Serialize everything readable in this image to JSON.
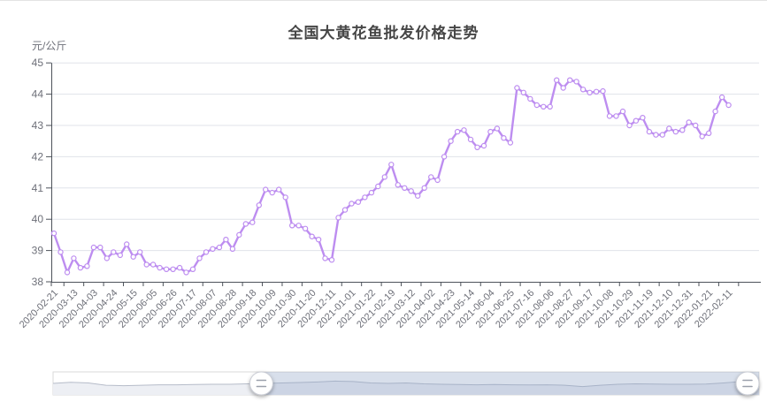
{
  "header": {
    "title": "全国大黄花鱼批发价格走势"
  },
  "chart_data": {
    "type": "line",
    "title": "全国大黄花鱼批发价格走势",
    "ylabel_unit": "元/公斤",
    "ylim": [
      38,
      45
    ],
    "y_ticks": [
      38,
      39,
      40,
      41,
      42,
      43,
      44,
      45
    ],
    "grid": true,
    "x_label_interval": 3,
    "x_tick_labels": [
      "2020-02-21",
      "2020-03-13",
      "2020-04-03",
      "2020-04-24",
      "2020-05-15",
      "2020-06-05",
      "2020-06-26",
      "2020-07-17",
      "2020-08-07",
      "2020-08-28",
      "2020-09-18",
      "2020-10-09",
      "2020-10-30",
      "2020-11-20",
      "2020-12-11",
      "2021-01-01",
      "2021-01-22",
      "2021-02-19",
      "2021-03-12",
      "2021-04-02",
      "2021-04-23",
      "2021-05-14",
      "2021-06-04",
      "2021-06-25",
      "2021-07-16",
      "2021-08-06",
      "2021-08-27",
      "2021-09-17",
      "2021-10-08",
      "2021-10-29",
      "2021-11-19",
      "2021-12-10",
      "2021-12-31",
      "2022-01-21",
      "2022-02-11"
    ],
    "x": [
      "2020-02-21",
      "2020-02-28",
      "2020-03-06",
      "2020-03-13",
      "2020-03-20",
      "2020-03-27",
      "2020-04-03",
      "2020-04-10",
      "2020-04-17",
      "2020-04-24",
      "2020-05-01",
      "2020-05-08",
      "2020-05-15",
      "2020-05-22",
      "2020-05-29",
      "2020-06-05",
      "2020-06-12",
      "2020-06-19",
      "2020-06-26",
      "2020-07-03",
      "2020-07-10",
      "2020-07-17",
      "2020-07-24",
      "2020-07-31",
      "2020-08-07",
      "2020-08-14",
      "2020-08-21",
      "2020-08-28",
      "2020-09-04",
      "2020-09-11",
      "2020-09-18",
      "2020-09-25",
      "2020-10-02",
      "2020-10-09",
      "2020-10-16",
      "2020-10-23",
      "2020-10-30",
      "2020-11-06",
      "2020-11-13",
      "2020-11-20",
      "2020-11-27",
      "2020-12-04",
      "2020-12-11",
      "2020-12-18",
      "2020-12-25",
      "2021-01-01",
      "2021-01-08",
      "2021-01-15",
      "2021-01-22",
      "2021-01-29",
      "2021-02-05",
      "2021-02-19",
      "2021-02-26",
      "2021-03-05",
      "2021-03-12",
      "2021-03-19",
      "2021-03-26",
      "2021-04-02",
      "2021-04-09",
      "2021-04-16",
      "2021-04-23",
      "2021-04-30",
      "2021-05-07",
      "2021-05-14",
      "2021-05-21",
      "2021-05-28",
      "2021-06-04",
      "2021-06-11",
      "2021-06-18",
      "2021-06-25",
      "2021-07-02",
      "2021-07-09",
      "2021-07-16",
      "2021-07-23",
      "2021-07-30",
      "2021-08-06",
      "2021-08-13",
      "2021-08-20",
      "2021-08-27",
      "2021-09-03",
      "2021-09-10",
      "2021-09-17",
      "2021-09-24",
      "2021-10-01",
      "2021-10-08",
      "2021-10-15",
      "2021-10-22",
      "2021-10-29",
      "2021-11-05",
      "2021-11-12",
      "2021-11-19",
      "2021-11-26",
      "2021-12-03",
      "2021-12-10",
      "2021-12-17",
      "2021-12-24",
      "2021-12-31",
      "2022-01-07",
      "2022-01-14",
      "2022-01-21",
      "2022-01-28",
      "2022-02-04",
      "2022-02-11"
    ],
    "values": [
      39.55,
      38.95,
      38.3,
      38.75,
      38.45,
      38.5,
      39.1,
      39.1,
      38.75,
      38.95,
      38.85,
      39.2,
      38.8,
      38.95,
      38.55,
      38.55,
      38.45,
      38.4,
      38.4,
      38.45,
      38.3,
      38.4,
      38.75,
      38.95,
      39.05,
      39.1,
      39.35,
      39.05,
      39.5,
      39.85,
      39.9,
      40.45,
      40.95,
      40.85,
      40.95,
      40.7,
      39.8,
      39.8,
      39.7,
      39.45,
      39.35,
      38.75,
      38.7,
      40.05,
      40.3,
      40.5,
      40.55,
      40.7,
      40.85,
      41.05,
      41.35,
      41.75,
      41.1,
      41.0,
      40.9,
      40.75,
      41.0,
      41.35,
      41.25,
      42.0,
      42.5,
      42.8,
      42.85,
      42.55,
      42.3,
      42.35,
      42.8,
      42.9,
      42.6,
      42.45,
      44.2,
      44.05,
      43.85,
      43.65,
      43.6,
      43.6,
      44.45,
      44.2,
      44.45,
      44.4,
      44.15,
      44.05,
      44.08,
      44.1,
      43.3,
      43.3,
      43.45,
      43.0,
      43.15,
      43.25,
      42.8,
      42.7,
      42.7,
      42.9,
      42.8,
      42.85,
      43.1,
      43.0,
      42.65,
      42.75,
      43.45,
      43.9,
      43.65
    ]
  },
  "datazoom": {
    "handle_icon": "≡",
    "window_start_pct": 29.5,
    "window_end_pct": 100,
    "minimap_profile": [
      0.5,
      0.55,
      0.52,
      0.42,
      0.4,
      0.42,
      0.44,
      0.44,
      0.45,
      0.46,
      0.46,
      0.48,
      0.5,
      0.52,
      0.54,
      0.56,
      0.6,
      0.58,
      0.52,
      0.5,
      0.52,
      0.48,
      0.46,
      0.45,
      0.44,
      0.45,
      0.44,
      0.43,
      0.44,
      0.42,
      0.36,
      0.42,
      0.46,
      0.48,
      0.47,
      0.46,
      0.46,
      0.47,
      0.52,
      0.58,
      0.55
    ]
  },
  "colors": {
    "line": "#bd8df0",
    "marker_fill": "#ffffff",
    "grid": "#e0e3ea",
    "axis": "#4d525a",
    "label": "#6e7079",
    "title": "#464646",
    "zoom_window": "#8fa3c6",
    "zoom_profile_line": "#b6bcc9",
    "zoom_profile_fill": "#edeff4",
    "zoom_border": "#d9d9d9"
  }
}
